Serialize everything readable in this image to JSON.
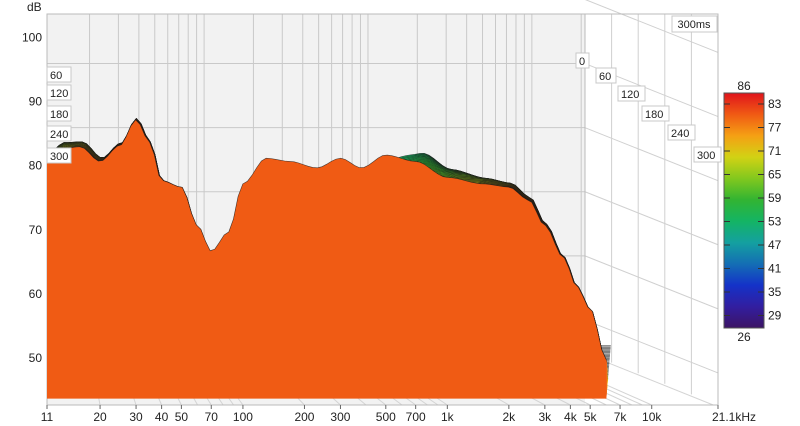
{
  "chart_data": {
    "type": "waterfall",
    "ylabel": "dB",
    "y_ticks": [
      50,
      60,
      70,
      80,
      90,
      100
    ],
    "ylim": [
      45,
      106
    ],
    "x_ticks": [
      {
        "value": 11,
        "label": "11"
      },
      {
        "value": 20,
        "label": "20"
      },
      {
        "value": 30,
        "label": "30"
      },
      {
        "value": 40,
        "label": "40"
      },
      {
        "value": 50,
        "label": "50"
      },
      {
        "value": 70,
        "label": "70"
      },
      {
        "value": 100,
        "label": "100"
      },
      {
        "value": 200,
        "label": "200"
      },
      {
        "value": 300,
        "label": "300"
      },
      {
        "value": 500,
        "label": "500"
      },
      {
        "value": 700,
        "label": "700"
      },
      {
        "value": 1000,
        "label": "1k"
      },
      {
        "value": 2000,
        "label": "2k"
      },
      {
        "value": 3000,
        "label": "3k"
      },
      {
        "value": 4000,
        "label": "4k"
      },
      {
        "value": 5000,
        "label": "5k"
      },
      {
        "value": 7000,
        "label": "7k"
      },
      {
        "value": 10000,
        "label": "10k"
      },
      {
        "value": 21100,
        "label": "21.1kHz"
      }
    ],
    "xlim_hz": [
      11,
      21100
    ],
    "x_scale": "log",
    "time_ticks_ms": [
      "0",
      "60",
      "120",
      "180",
      "240",
      "300"
    ],
    "time_end_label": "300ms",
    "colorbar": {
      "max_label": "86",
      "min_label": "26",
      "ticks": [
        "83",
        "77",
        "71",
        "65",
        "59",
        "53",
        "47",
        "41",
        "35",
        "29"
      ],
      "colors": [
        "#e0141c",
        "#f05a14",
        "#f5a014",
        "#d2d214",
        "#82c81e",
        "#32b432",
        "#14b464",
        "#14a0a0",
        "#146eb4",
        "#1432c8",
        "#321ea0",
        "#3c1464"
      ]
    },
    "front_response": [
      {
        "hz": 11,
        "db": 83.5
      },
      {
        "hz": 13,
        "db": 85.0
      },
      {
        "hz": 16,
        "db": 85.3
      },
      {
        "hz": 20,
        "db": 83.0
      },
      {
        "hz": 25,
        "db": 85.5
      },
      {
        "hz": 30,
        "db": 89.5
      },
      {
        "hz": 35,
        "db": 86.0
      },
      {
        "hz": 40,
        "db": 80.0
      },
      {
        "hz": 50,
        "db": 79.0
      },
      {
        "hz": 60,
        "db": 73.0
      },
      {
        "hz": 70,
        "db": 69.0
      },
      {
        "hz": 85,
        "db": 72.0
      },
      {
        "hz": 100,
        "db": 79.5
      },
      {
        "hz": 130,
        "db": 83.5
      },
      {
        "hz": 170,
        "db": 83.0
      },
      {
        "hz": 230,
        "db": 82.0
      },
      {
        "hz": 300,
        "db": 83.5
      },
      {
        "hz": 380,
        "db": 82.0
      },
      {
        "hz": 500,
        "db": 84.0
      },
      {
        "hz": 700,
        "db": 83.0
      },
      {
        "hz": 1000,
        "db": 80.5
      },
      {
        "hz": 1500,
        "db": 79.5
      },
      {
        "hz": 2000,
        "db": 79.0
      },
      {
        "hz": 2500,
        "db": 77.0
      },
      {
        "hz": 3000,
        "db": 73.0
      },
      {
        "hz": 3700,
        "db": 68.0
      },
      {
        "hz": 4300,
        "db": 63.5
      },
      {
        "hz": 5000,
        "db": 60.0
      },
      {
        "hz": 6000,
        "db": 52.0
      }
    ]
  }
}
